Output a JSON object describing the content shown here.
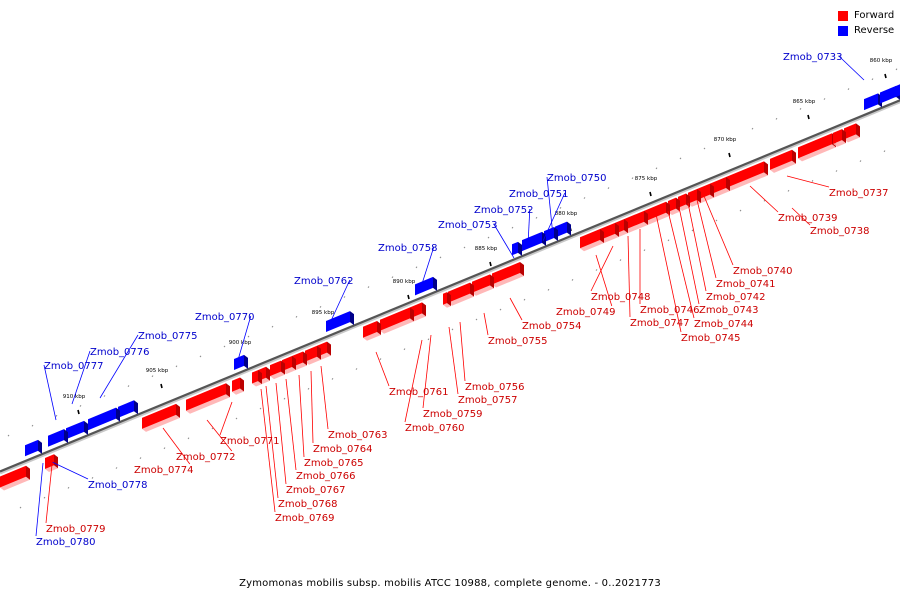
{
  "colors": {
    "forward": "#ff0000",
    "reverse": "#0000ff",
    "forward_label": "#cc0000",
    "reverse_label": "#0000cc"
  },
  "legend": {
    "forward": "Forward",
    "reverse": "Reverse"
  },
  "footer": "Zymomonas mobilis subsp. mobilis ATCC 10988, complete genome. - 0..2021773",
  "ticks": [
    "860 kbp",
    "865 kbp",
    "870 kbp",
    "875 kbp",
    "880 kbp",
    "885 kbp",
    "890 kbp",
    "895 kbp",
    "900 kbp",
    "905 kbp",
    "910 kbp"
  ],
  "genes": [
    {
      "name": "Zmob_0733",
      "strand": "reverse"
    },
    {
      "name": "Zmob_0737",
      "strand": "forward"
    },
    {
      "name": "Zmob_0738",
      "strand": "forward"
    },
    {
      "name": "Zmob_0739",
      "strand": "forward"
    },
    {
      "name": "Zmob_0740",
      "strand": "forward"
    },
    {
      "name": "Zmob_0741",
      "strand": "forward"
    },
    {
      "name": "Zmob_0742",
      "strand": "forward"
    },
    {
      "name": "Zmob_0743",
      "strand": "forward"
    },
    {
      "name": "Zmob_0744",
      "strand": "forward"
    },
    {
      "name": "Zmob_0745",
      "strand": "forward"
    },
    {
      "name": "Zmob_0746",
      "strand": "forward"
    },
    {
      "name": "Zmob_0747",
      "strand": "forward"
    },
    {
      "name": "Zmob_0748",
      "strand": "forward"
    },
    {
      "name": "Zmob_0749",
      "strand": "forward"
    },
    {
      "name": "Zmob_0750",
      "strand": "reverse"
    },
    {
      "name": "Zmob_0751",
      "strand": "reverse"
    },
    {
      "name": "Zmob_0752",
      "strand": "reverse"
    },
    {
      "name": "Zmob_0753",
      "strand": "reverse"
    },
    {
      "name": "Zmob_0754",
      "strand": "forward"
    },
    {
      "name": "Zmob_0755",
      "strand": "forward"
    },
    {
      "name": "Zmob_0756",
      "strand": "forward"
    },
    {
      "name": "Zmob_0757",
      "strand": "forward"
    },
    {
      "name": "Zmob_0758",
      "strand": "reverse"
    },
    {
      "name": "Zmob_0759",
      "strand": "forward"
    },
    {
      "name": "Zmob_0760",
      "strand": "forward"
    },
    {
      "name": "Zmob_0761",
      "strand": "forward"
    },
    {
      "name": "Zmob_0762",
      "strand": "reverse"
    },
    {
      "name": "Zmob_0763",
      "strand": "forward"
    },
    {
      "name": "Zmob_0764",
      "strand": "forward"
    },
    {
      "name": "Zmob_0765",
      "strand": "forward"
    },
    {
      "name": "Zmob_0766",
      "strand": "forward"
    },
    {
      "name": "Zmob_0767",
      "strand": "forward"
    },
    {
      "name": "Zmob_0768",
      "strand": "forward"
    },
    {
      "name": "Zmob_0769",
      "strand": "forward"
    },
    {
      "name": "Zmob_0770",
      "strand": "reverse"
    },
    {
      "name": "Zmob_0771",
      "strand": "forward"
    },
    {
      "name": "Zmob_0772",
      "strand": "forward"
    },
    {
      "name": "Zmob_0774",
      "strand": "forward"
    },
    {
      "name": "Zmob_0775",
      "strand": "reverse"
    },
    {
      "name": "Zmob_0776",
      "strand": "reverse"
    },
    {
      "name": "Zmob_0777",
      "strand": "reverse"
    },
    {
      "name": "Zmob_0778",
      "strand": "reverse"
    },
    {
      "name": "Zmob_0779",
      "strand": "forward"
    },
    {
      "name": "Zmob_0780",
      "strand": "reverse"
    }
  ]
}
